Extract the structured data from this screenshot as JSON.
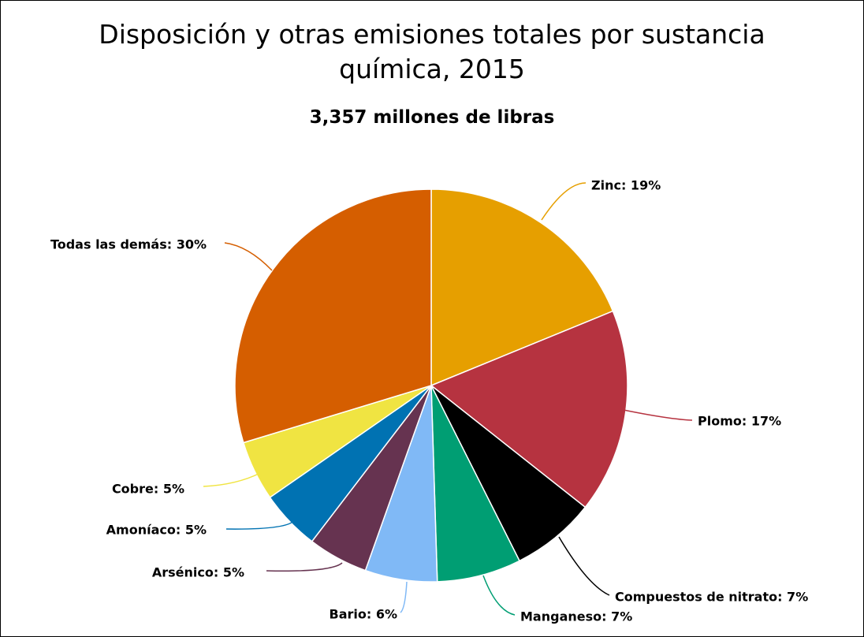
{
  "chart_data": {
    "type": "pie",
    "title": "Disposición y otras emisiones totales por sustancia química, 2015",
    "subtitle": "3,357 millones de libras",
    "values": [
      19,
      17,
      7,
      7,
      6,
      5,
      5,
      5,
      30
    ],
    "value_labels": [
      "Zinc: 19%",
      "Plomo: 17%",
      "Compuestos de nitrato: 7%",
      "Manganeso: 7%",
      "Bario: 6%",
      "Arsénico: 5%",
      "Amoníaco: 5%",
      "Cobre: 5%",
      "Todas las demás: 30%"
    ],
    "colors": [
      "#e69f00",
      "#b63340",
      "#000000",
      "#009e73",
      "#80b9f6",
      "#663350",
      "#0072b2",
      "#f0e442",
      "#d55e00"
    ]
  }
}
